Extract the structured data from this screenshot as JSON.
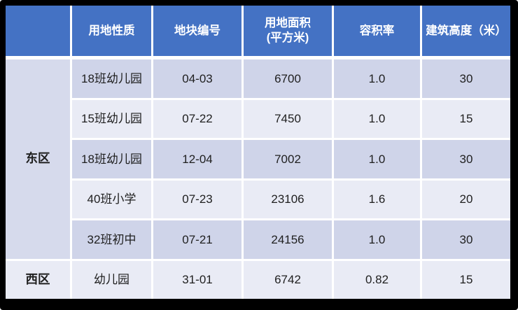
{
  "colors": {
    "frame": "#000000",
    "header_bg": "#4472C4",
    "header_text": "#FFFFFF",
    "band_dark": "#CFD4E9",
    "band_light": "#E9EBF5",
    "group_east_bg": "#D6DAEC",
    "grid_line": "#FFFFFF",
    "body_text": "#1F1F1F"
  },
  "table": {
    "header": {
      "corner": "",
      "use_type": "用地性质",
      "plot_no": "地块编号",
      "area_line1": "用地面积",
      "area_line2": "(平方米)",
      "far": "容积率",
      "height": "建筑高度（米）"
    },
    "groups": [
      {
        "name": "东区",
        "rows": [
          {
            "use": "18班幼儿园",
            "plot": "04-03",
            "area": "6700",
            "far": "1.0",
            "height": "30"
          },
          {
            "use": "15班幼儿园",
            "plot": "07-22",
            "area": "7450",
            "far": "1.0",
            "height": "15"
          },
          {
            "use": "18班幼儿园",
            "plot": "12-04",
            "area": "7002",
            "far": "1.0",
            "height": "30"
          },
          {
            "use": "40班小学",
            "plot": "07-23",
            "area": "23106",
            "far": "1.6",
            "height": "20"
          },
          {
            "use": "32班初中",
            "plot": "07-21",
            "area": "24156",
            "far": "1.0",
            "height": "30"
          }
        ]
      },
      {
        "name": "西区",
        "rows": [
          {
            "use": "幼儿园",
            "plot": "31-01",
            "area": "6742",
            "far": "0.82",
            "height": "15"
          }
        ]
      }
    ]
  },
  "chart_data": {
    "type": "table",
    "columns": [
      "",
      "用地性质",
      "地块编号",
      "用地面积(平方米)",
      "容积率",
      "建筑高度（米）"
    ],
    "rows": [
      [
        "东区",
        "18班幼儿园",
        "04-03",
        6700,
        1.0,
        30
      ],
      [
        "东区",
        "15班幼儿园",
        "07-22",
        7450,
        1.0,
        15
      ],
      [
        "东区",
        "18班幼儿园",
        "12-04",
        7002,
        1.0,
        30
      ],
      [
        "东区",
        "40班小学",
        "07-23",
        23106,
        1.6,
        20
      ],
      [
        "东区",
        "32班初中",
        "07-21",
        24156,
        1.0,
        30
      ],
      [
        "西区",
        "幼儿园",
        "31-01",
        6742,
        0.82,
        15
      ]
    ],
    "title": "",
    "notes": "banded land-use planning table, groups merged in first column"
  }
}
